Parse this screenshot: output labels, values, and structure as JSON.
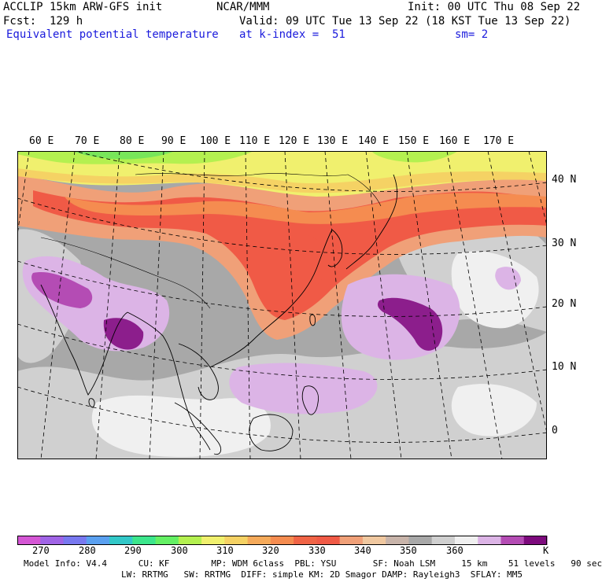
{
  "header": {
    "model": "ACCLIP 15km ARW-GFS init",
    "org": "NCAR/MMM",
    "init": "Init: 00 UTC Thu 08 Sep 22",
    "fcst": "Fcst:  129 h",
    "valid": "Valid: 09 UTC Tue 13 Sep 22 (18 KST Tue 13 Sep 22)",
    "field": "Equivalent potential temperature",
    "level": "at k-index =  51",
    "smooth": "sm= 2"
  },
  "map": {
    "lon_labels": [
      "60 E",
      "70 E",
      "80 E",
      "90 E",
      "100 E",
      "110 E",
      "120 E",
      "130 E",
      "140 E",
      "150 E",
      "160 E",
      "170 E"
    ],
    "lat_labels": [
      "40 N",
      "30 N",
      "20 N",
      "10 N",
      "0"
    ],
    "colors": {
      "background_gray": "#a8a8a8",
      "light_gray": "#d0d0d0",
      "white": "#f0f0f0",
      "lavender": "#dcb4e6",
      "orchid": "#b44cb4",
      "purple": "#8c1e8c",
      "salmon": "#f0a078",
      "red": "#f05a46",
      "orange": "#f58c50",
      "yellow": "#f0f06e",
      "green": "#78e65a"
    }
  },
  "colorbar": {
    "colors": [
      "#d456d4",
      "#a064e6",
      "#7878f0",
      "#5aa0f0",
      "#32c8c8",
      "#3ce68c",
      "#64f064",
      "#b4f050",
      "#f0f06e",
      "#f5d264",
      "#f5aa5a",
      "#f58c50",
      "#f06446",
      "#f05a46",
      "#f0a078",
      "#f0c8a0",
      "#c8b4aa",
      "#a8a8a8",
      "#d0d0d0",
      "#f0f0f0",
      "#dcb4e6",
      "#b44cb4",
      "#7d0a7d"
    ],
    "labels": [
      "270",
      "280",
      "290",
      "300",
      "310",
      "320",
      "330",
      "340",
      "350",
      "360"
    ],
    "unit": "K"
  },
  "footer": {
    "line1": "Model Info: V4.4      CU: KF        MP: WDM 6class  PBL: YSU       SF: Noah LSM     15 km    51 levels   90 sec",
    "line2": "LW: RRTMG   SW: RRTMG  DIFF: simple KM: 2D Smagor DAMP: Rayleigh3  SFLAY: MM5"
  }
}
